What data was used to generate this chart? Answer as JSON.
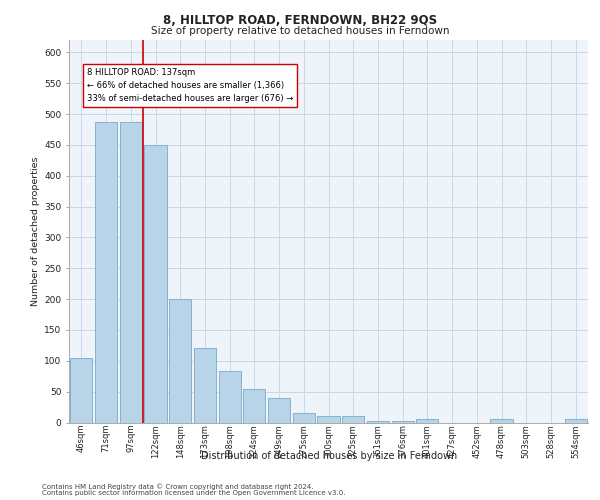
{
  "title": "8, HILLTOP ROAD, FERNDOWN, BH22 9QS",
  "subtitle": "Size of property relative to detached houses in Ferndown",
  "xlabel_bottom": "Distribution of detached houses by size in Ferndown",
  "ylabel": "Number of detached properties",
  "footer1": "Contains HM Land Registry data © Crown copyright and database right 2024.",
  "footer2": "Contains public sector information licensed under the Open Government Licence v3.0.",
  "categories": [
    "46sqm",
    "71sqm",
    "97sqm",
    "122sqm",
    "148sqm",
    "173sqm",
    "198sqm",
    "224sqm",
    "249sqm",
    "275sqm",
    "300sqm",
    "325sqm",
    "351sqm",
    "376sqm",
    "401sqm",
    "427sqm",
    "452sqm",
    "478sqm",
    "503sqm",
    "528sqm",
    "554sqm"
  ],
  "values": [
    105,
    487,
    487,
    450,
    200,
    120,
    83,
    55,
    40,
    15,
    10,
    10,
    3,
    3,
    5,
    0,
    0,
    5,
    0,
    0,
    5
  ],
  "bar_color": "#b8d4e8",
  "bar_edge_color": "#7aaac8",
  "grid_color": "#c8d8e8",
  "background_color": "#eef4fa",
  "property_line_color": "#cc0000",
  "annotation_text": "8 HILLTOP ROAD: 137sqm\n← 66% of detached houses are smaller (1,366)\n33% of semi-detached houses are larger (676) →",
  "annotation_box_color": "#ffffff",
  "annotation_box_edge_color": "#cc0000",
  "ylim": [
    0,
    620
  ],
  "yticks": [
    0,
    50,
    100,
    150,
    200,
    250,
    300,
    350,
    400,
    450,
    500,
    550,
    600
  ]
}
